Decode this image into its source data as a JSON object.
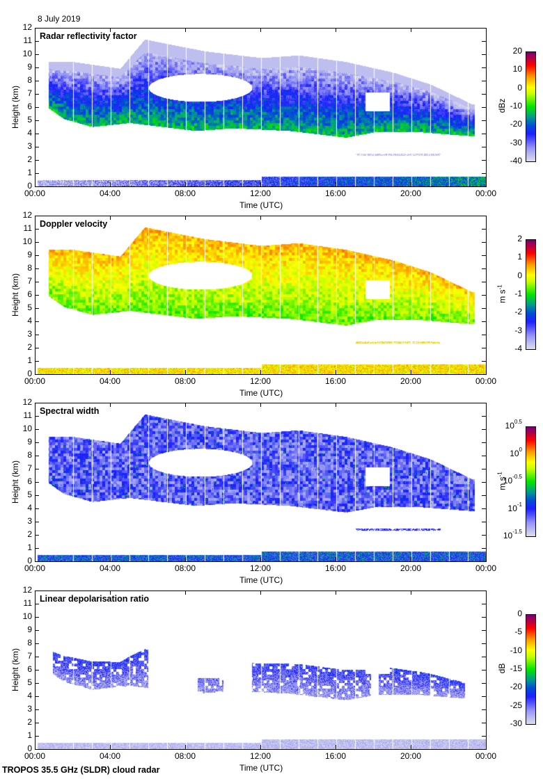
{
  "date_label": "8 July 2019",
  "footer": "TROPOS 35.5 GHz (SLDR) cloud radar",
  "x_axis": {
    "title": "Time (UTC)",
    "ticks": [
      "00:00",
      "04:00",
      "08:00",
      "12:00",
      "16:00",
      "20:00",
      "00:00"
    ]
  },
  "y_axis": {
    "title": "Height (km)",
    "ticks": [
      "0",
      "1",
      "2",
      "3",
      "4",
      "5",
      "6",
      "7",
      "8",
      "9",
      "10",
      "11",
      "12"
    ]
  },
  "chart_data": [
    {
      "type": "heatmap",
      "title": "Radar reflectivity factor",
      "xlabel": "Time (UTC)",
      "ylabel": "Height (km)",
      "xlim_hours": [
        0,
        24
      ],
      "ylim_km": [
        0,
        12
      ],
      "colorbar": {
        "label": "dBz",
        "range": [
          -40,
          20
        ],
        "ticks": [
          "20",
          "10",
          "0",
          "-10",
          "-20",
          "-30",
          "-40"
        ]
      },
      "field": "reflectivity"
    },
    {
      "type": "heatmap",
      "title": "Doppler velocity",
      "xlabel": "Time (UTC)",
      "ylabel": "Height (km)",
      "xlim_hours": [
        0,
        24
      ],
      "ylim_km": [
        0,
        12
      ],
      "colorbar": {
        "label": "m s-1",
        "label_base": "m s",
        "label_exp": "-1",
        "range": [
          -4,
          2
        ],
        "ticks": [
          "2",
          "1",
          "0",
          "-1",
          "-2",
          "-3",
          "-4"
        ]
      },
      "field": "velocity"
    },
    {
      "type": "heatmap",
      "title": "Spectral width",
      "xlabel": "Time (UTC)",
      "ylabel": "Height (km)",
      "xlim_hours": [
        0,
        24
      ],
      "ylim_km": [
        0,
        12
      ],
      "colorbar": {
        "label": "m s-1",
        "label_base": "m s",
        "label_exp": "-1",
        "scale": "log",
        "range": [
          -1.5,
          0.5
        ],
        "ticks_base": [
          "10",
          "10",
          "10",
          "10",
          "10"
        ],
        "ticks_exp": [
          "0.5",
          "0",
          "-0.5",
          "-1",
          "-1.5"
        ]
      },
      "field": "width"
    },
    {
      "type": "heatmap",
      "title": "Linear depolarisation ratio",
      "xlabel": "Time (UTC)",
      "ylabel": "Height (km)",
      "xlim_hours": [
        0,
        24
      ],
      "ylim_km": [
        0,
        12
      ],
      "colorbar": {
        "label": "dB",
        "range": [
          -30,
          0
        ],
        "ticks": [
          "0",
          "-5",
          "-10",
          "-15",
          "-20",
          "-25",
          "-30"
        ]
      },
      "field": "ldr"
    }
  ],
  "cloud_structure": {
    "main_cloud_base_km": [
      [
        0.7,
        6.0
      ],
      [
        1.5,
        5.2
      ],
      [
        3.0,
        4.6
      ],
      [
        5.0,
        4.9
      ],
      [
        8.5,
        4.3
      ],
      [
        10.5,
        4.5
      ],
      [
        13.5,
        4.3
      ],
      [
        16.5,
        3.8
      ],
      [
        18.0,
        4.2
      ],
      [
        20.5,
        4.2
      ],
      [
        23.2,
        3.9
      ]
    ],
    "main_cloud_top_km": [
      [
        0.7,
        9.5
      ],
      [
        2.0,
        9.5
      ],
      [
        4.5,
        9.0
      ],
      [
        5.8,
        11.2
      ],
      [
        9.0,
        10.3
      ],
      [
        12.0,
        9.8
      ],
      [
        14.0,
        10.0
      ],
      [
        16.5,
        9.5
      ],
      [
        19.0,
        8.7
      ],
      [
        21.0,
        7.8
      ],
      [
        23.2,
        6.3
      ]
    ],
    "gap_region": {
      "time_hours": [
        6.0,
        11.5
      ],
      "height_km": [
        6.5,
        8.6
      ]
    },
    "boundary_layer_top_km": 0.6,
    "thin_layer": {
      "time_hours": [
        17.0,
        21.5
      ],
      "height_km": 2.5
    },
    "data_gaps_every_hours": 1
  }
}
